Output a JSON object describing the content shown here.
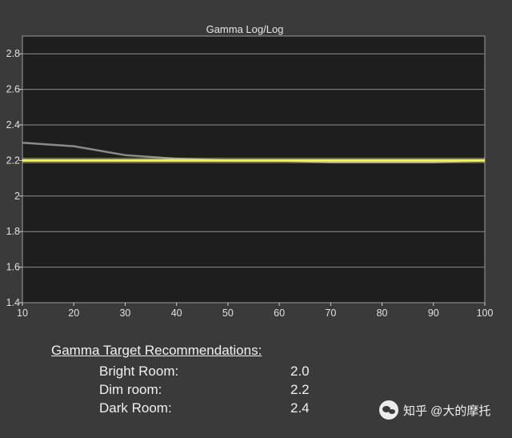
{
  "chart_data": {
    "type": "line",
    "title": "Gamma Log/Log",
    "xlim": [
      10,
      100
    ],
    "ylim": [
      1.4,
      2.9
    ],
    "x_ticks": [
      10,
      20,
      30,
      40,
      50,
      60,
      70,
      80,
      90,
      100
    ],
    "y_ticks": [
      1.4,
      1.6,
      1.8,
      2,
      2.2,
      2.4,
      2.6,
      2.8
    ],
    "y_tick_labels": [
      "1.4",
      "1.6",
      "1.8",
      "2",
      "2.2",
      "2.4",
      "2.6",
      "2.8"
    ],
    "grid": "horizontal",
    "series": [
      {
        "color": "#8a8a8a",
        "x": [
          10,
          20,
          30,
          40,
          50,
          60,
          70,
          80,
          90,
          100
        ],
        "values": [
          2.3,
          2.28,
          2.23,
          2.21,
          2.2,
          2.2,
          2.19,
          2.19,
          2.19,
          2.2
        ]
      },
      {
        "color": "#f4f43a",
        "x": [
          10,
          100
        ],
        "values": [
          2.2,
          2.2
        ]
      }
    ]
  },
  "recommendations": {
    "heading": "Gamma Target Recommendations:",
    "rows": [
      {
        "label": "Bright Room:",
        "value": "2.0"
      },
      {
        "label": "Dim room:",
        "value": "2.2"
      },
      {
        "label": "Dark Room:",
        "value": "2.4"
      }
    ]
  },
  "watermark": {
    "text": "知乎 @大的摩托",
    "icon": "wechat-logo-icon"
  }
}
